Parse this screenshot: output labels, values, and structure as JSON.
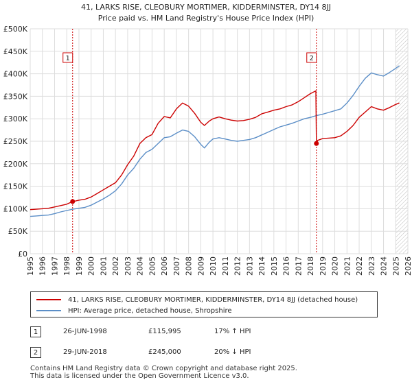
{
  "chart_data": {
    "type": "line",
    "title": "41, LARKS RISE, CLEOBURY MORTIMER, KIDDERMINSTER, DY14 8JJ",
    "subtitle": "Price paid vs. HM Land Registry's House Price Index (HPI)",
    "xlabel": "",
    "ylabel": "",
    "xlim": [
      1995,
      2026
    ],
    "ylim": [
      0,
      500000
    ],
    "x_ticks": [
      "1995",
      "1996",
      "1997",
      "1998",
      "1999",
      "2000",
      "2001",
      "2002",
      "2003",
      "2004",
      "2005",
      "2006",
      "2007",
      "2008",
      "2009",
      "2010",
      "2011",
      "2012",
      "2013",
      "2014",
      "2015",
      "2016",
      "2017",
      "2018",
      "2019",
      "2020",
      "2021",
      "2022",
      "2023",
      "2024",
      "2025",
      "2026"
    ],
    "y_ticks": [
      {
        "value": 0,
        "label": "£0"
      },
      {
        "value": 50000,
        "label": "£50K"
      },
      {
        "value": 100000,
        "label": "£100K"
      },
      {
        "value": 150000,
        "label": "£150K"
      },
      {
        "value": 200000,
        "label": "£200K"
      },
      {
        "value": 250000,
        "label": "£250K"
      },
      {
        "value": 300000,
        "label": "£300K"
      },
      {
        "value": 350000,
        "label": "£350K"
      },
      {
        "value": 400000,
        "label": "£400K"
      },
      {
        "value": 450000,
        "label": "£450K"
      },
      {
        "value": 500000,
        "label": "£500K"
      }
    ],
    "grid": true,
    "projection_start": 2025.0,
    "series": [
      {
        "name": "41, LARKS RISE, CLEOBURY MORTIMER, KIDDERMINSTER, DY14 8JJ (detached house)",
        "color": "#cc0000",
        "x": [
          1995.0,
          1995.5,
          1996.0,
          1996.5,
          1997.0,
          1997.5,
          1998.0,
          1998.48,
          1998.7,
          1999.0,
          1999.5,
          2000.0,
          2000.5,
          2001.0,
          2001.5,
          2002.0,
          2002.5,
          2003.0,
          2003.5,
          2004.0,
          2004.5,
          2005.0,
          2005.5,
          2006.0,
          2006.5,
          2007.0,
          2007.5,
          2008.0,
          2008.5,
          2009.0,
          2009.3,
          2009.7,
          2010.0,
          2010.5,
          2011.0,
          2011.5,
          2012.0,
          2012.5,
          2013.0,
          2013.5,
          2014.0,
          2014.5,
          2015.0,
          2015.5,
          2016.0,
          2016.5,
          2017.0,
          2017.5,
          2018.0,
          2018.45,
          2018.49,
          2018.6,
          2019.0,
          2019.5,
          2020.0,
          2020.5,
          2021.0,
          2021.5,
          2022.0,
          2022.5,
          2023.0,
          2023.5,
          2024.0,
          2024.5,
          2025.0,
          2025.3
        ],
        "y": [
          98000,
          99000,
          100000,
          101000,
          104000,
          107000,
          110000,
          115995,
          117000,
          119000,
          121000,
          126000,
          134000,
          142000,
          150000,
          158000,
          175000,
          198000,
          217000,
          245000,
          258000,
          265000,
          290000,
          305000,
          302000,
          322000,
          335000,
          328000,
          312000,
          292000,
          285000,
          295000,
          300000,
          304000,
          300000,
          297000,
          295000,
          296000,
          299000,
          303000,
          311000,
          315000,
          319000,
          322000,
          327000,
          331000,
          338000,
          347000,
          356000,
          362000,
          245000,
          252000,
          256000,
          257000,
          258000,
          262000,
          272000,
          285000,
          303000,
          315000,
          327000,
          322000,
          319000,
          325000,
          332000,
          335000
        ]
      },
      {
        "name": "HPI: Average price, detached house, Shropshire",
        "color": "#5b8ec7",
        "x": [
          1995.0,
          1995.5,
          1996.0,
          1996.5,
          1997.0,
          1997.5,
          1998.0,
          1998.5,
          1999.0,
          1999.5,
          2000.0,
          2000.5,
          2001.0,
          2001.5,
          2002.0,
          2002.5,
          2003.0,
          2003.5,
          2004.0,
          2004.5,
          2005.0,
          2005.5,
          2006.0,
          2006.5,
          2007.0,
          2007.5,
          2008.0,
          2008.5,
          2009.0,
          2009.3,
          2009.7,
          2010.0,
          2010.5,
          2011.0,
          2011.5,
          2012.0,
          2012.5,
          2013.0,
          2013.5,
          2014.0,
          2014.5,
          2015.0,
          2015.5,
          2016.0,
          2016.5,
          2017.0,
          2017.5,
          2018.0,
          2018.5,
          2019.0,
          2019.5,
          2020.0,
          2020.5,
          2021.0,
          2021.5,
          2022.0,
          2022.5,
          2023.0,
          2023.5,
          2024.0,
          2024.5,
          2025.0,
          2025.3
        ],
        "y": [
          83000,
          84000,
          85000,
          86000,
          89000,
          93000,
          96000,
          99000,
          101000,
          103000,
          108000,
          115000,
          122000,
          130000,
          140000,
          155000,
          175000,
          190000,
          210000,
          225000,
          232000,
          245000,
          258000,
          260000,
          268000,
          275000,
          272000,
          260000,
          243000,
          235000,
          248000,
          255000,
          258000,
          255000,
          252000,
          250000,
          252000,
          254000,
          258000,
          264000,
          270000,
          276000,
          282000,
          286000,
          290000,
          295000,
          300000,
          303000,
          307000,
          310000,
          314000,
          318000,
          322000,
          335000,
          352000,
          372000,
          390000,
          402000,
          398000,
          395000,
          403000,
          412000,
          418000
        ]
      }
    ],
    "annotations": [
      {
        "label": "1",
        "x": 1998.48,
        "y": 115995
      },
      {
        "label": "2",
        "x": 2018.49,
        "y": 245000
      }
    ]
  },
  "legend": {
    "red": "41, LARKS RISE, CLEOBURY MORTIMER, KIDDERMINSTER, DY14 8JJ (detached house)",
    "blue": "HPI: Average price, detached house, Shropshire"
  },
  "transactions": [
    {
      "num": "1",
      "date": "26-JUN-1998",
      "price": "£115,995",
      "hpi": "17% ↑ HPI"
    },
    {
      "num": "2",
      "date": "29-JUN-2018",
      "price": "£245,000",
      "hpi": "20% ↓ HPI"
    }
  ],
  "footer": {
    "line1": "Contains HM Land Registry data © Crown copyright and database right 2025.",
    "line2": "This data is licensed under the Open Government Licence v3.0."
  }
}
